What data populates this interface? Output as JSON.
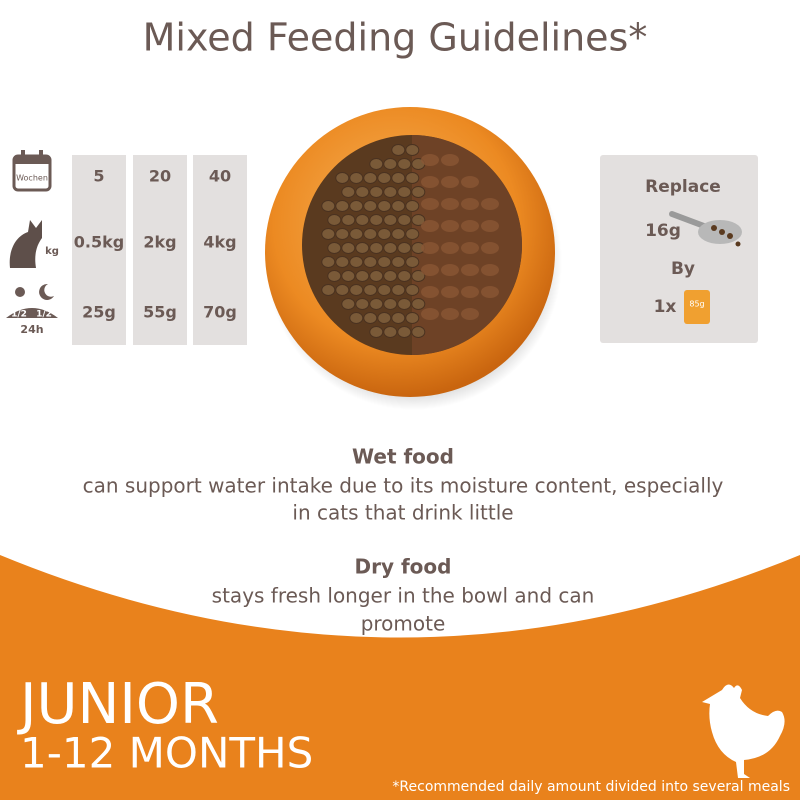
{
  "title": "Mixed Feeding Guidelines*",
  "table": {
    "row_labels": {
      "weeks": "Wochen",
      "weight": "kg",
      "day": "1/2",
      "night": "1/2",
      "period": "24h"
    },
    "columns": [
      {
        "weeks": "5",
        "weight": "0.5kg",
        "amount": "25g"
      },
      {
        "weeks": "20",
        "weight": "2kg",
        "amount": "55g"
      },
      {
        "weeks": "40",
        "weight": "4kg",
        "amount": "70g"
      }
    ]
  },
  "replace": {
    "heading": "Replace",
    "dry_amount": "16g",
    "by": "By",
    "wet_count": "1x",
    "pouch": "85g"
  },
  "wet_food": {
    "heading": "Wet food",
    "lines": [
      "can support water intake due to its moisture content, especially",
      "in cats that drink little"
    ]
  },
  "dry_food": {
    "heading": "Dry food",
    "lines": [
      "stays fresh longer in the bowl and can",
      "promote"
    ]
  },
  "banner": {
    "title": "JUNIOR",
    "subtitle": "1-12 MONTHS",
    "footnote": "*Recommended daily amount divided into several meals"
  }
}
